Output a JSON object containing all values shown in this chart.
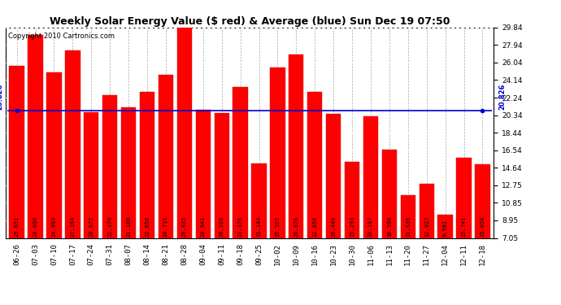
{
  "title": "Weekly Solar Energy Value ($ red) & Average (blue) Sun Dec 19 07:50",
  "copyright": "Copyright 2010 Cartronics.com",
  "average_value": 20.826,
  "average_label": "20.826",
  "bar_color": "#FF0000",
  "average_line_color": "#0000CC",
  "background_color": "#FFFFFF",
  "plot_bg_color": "#FFFFFF",
  "grid_color": "#AAAAAA",
  "categories": [
    "06-26",
    "07-03",
    "07-10",
    "07-17",
    "07-24",
    "07-31",
    "08-07",
    "08-14",
    "08-21",
    "08-28",
    "09-04",
    "09-11",
    "09-18",
    "09-25",
    "10-02",
    "10-09",
    "10-16",
    "10-23",
    "10-30",
    "11-06",
    "11-13",
    "11-20",
    "11-27",
    "12-04",
    "12-11",
    "12-18"
  ],
  "values": [
    25.651,
    29.0,
    24.993,
    27.394,
    20.672,
    22.47,
    21.18,
    22.858,
    24.719,
    29.835,
    20.941,
    20.528,
    23.376,
    15.144,
    25.525,
    26.876,
    22.85,
    20.449,
    15.293,
    20.187,
    16.59,
    11.639,
    12.927,
    9.581,
    15.741,
    15.058
  ],
  "value_labels": [
    "25.651",
    "29.000",
    "24.993",
    "27.394",
    "20.672",
    "22.470",
    "21.180",
    "22.858",
    "24.719",
    "29.835",
    "20.941",
    "20.528",
    "23.376",
    "15.144",
    "25.525",
    "26.876",
    "22.850",
    "20.449",
    "15.293",
    "20.187",
    "16.590",
    "11.639",
    "12.927",
    "9.581",
    "15.741",
    "15.058"
  ],
  "ylim_min": 7.05,
  "ylim_max": 29.84,
  "yticks": [
    7.05,
    8.95,
    10.85,
    12.75,
    14.64,
    16.54,
    18.44,
    20.34,
    22.24,
    24.14,
    26.04,
    27.94,
    29.84
  ],
  "title_fontsize": 9,
  "copyright_fontsize": 6,
  "tick_fontsize": 6.5,
  "label_fontsize": 5.0,
  "bar_width": 0.8
}
